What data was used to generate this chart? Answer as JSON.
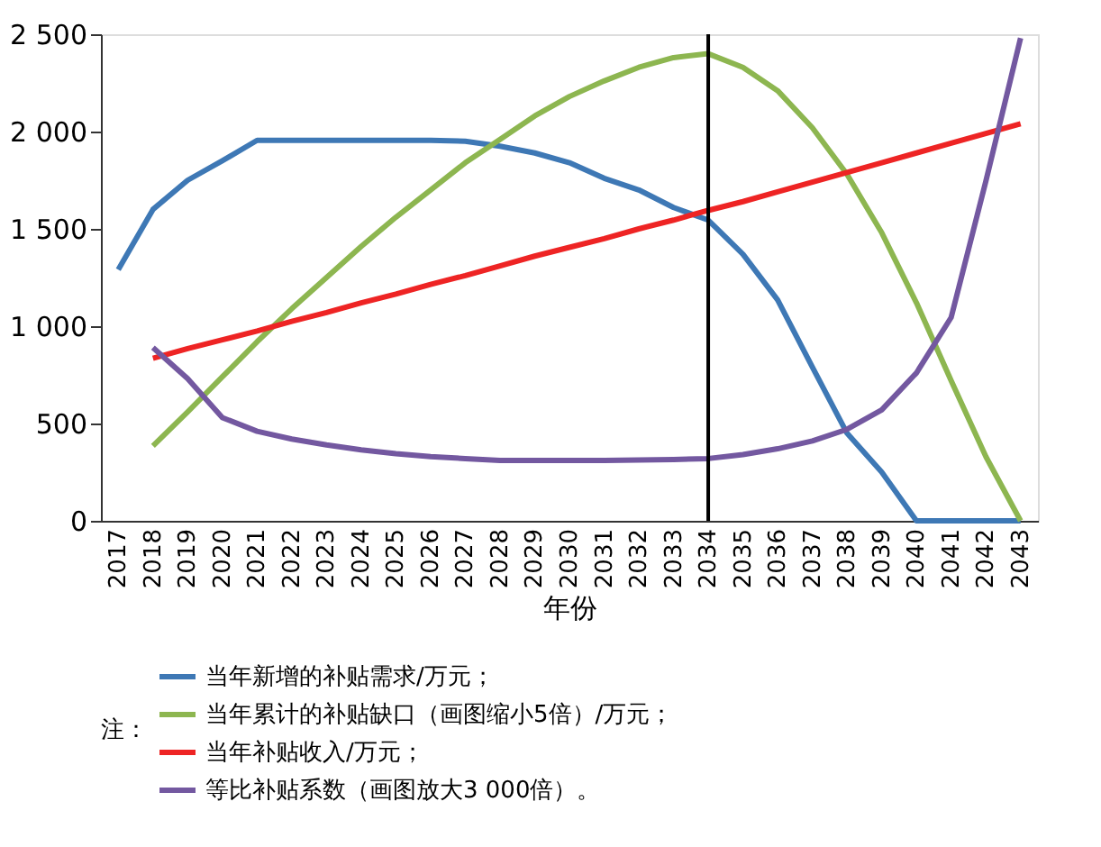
{
  "chart_data": {
    "type": "line",
    "xlabel": "年份",
    "legend_title": "注：",
    "categories": [
      "2017",
      "2018",
      "2019",
      "2020",
      "2021",
      "2022",
      "2023",
      "2024",
      "2025",
      "2026",
      "2027",
      "2028",
      "2029",
      "2030",
      "2031",
      "2032",
      "2033",
      "2034",
      "2035",
      "2036",
      "2037",
      "2038",
      "2039",
      "2040",
      "2041",
      "2042",
      "2043"
    ],
    "series": [
      {
        "name": "当年新增的补贴需求/万元；",
        "color": "#3e78b5",
        "values": [
          1290,
          1600,
          1750,
          1850,
          1955,
          1955,
          1955,
          1955,
          1955,
          1955,
          1950,
          1925,
          1890,
          1840,
          1760,
          1700,
          1610,
          1545,
          1370,
          1135,
          790,
          450,
          250,
          0,
          0,
          0,
          0
        ]
      },
      {
        "name": "当年累计的补贴缺口（画图缩小5倍）/万元；",
        "color": "#8db650",
        "values": [
          null,
          385,
          560,
          740,
          920,
          1090,
          1250,
          1410,
          1560,
          1700,
          1840,
          1960,
          2080,
          2180,
          2260,
          2330,
          2380,
          2400,
          2330,
          2210,
          2020,
          1780,
          1480,
          1120,
          720,
          330,
          0
        ]
      },
      {
        "name": "当年补贴收入/万元；",
        "color": "#ee2424",
        "values": [
          null,
          835,
          885,
          930,
          975,
          1025,
          1070,
          1120,
          1165,
          1215,
          1260,
          1310,
          1360,
          1405,
          1450,
          1500,
          1545,
          1595,
          1640,
          1690,
          1740,
          1790,
          1840,
          1890,
          1940,
          1990,
          2040
        ]
      },
      {
        "name": "等比补贴系数（画图放大3 000倍）。",
        "color": "#7358a0",
        "values": [
          null,
          890,
          730,
          530,
          460,
          420,
          390,
          365,
          345,
          330,
          320,
          310,
          310,
          310,
          310,
          312,
          315,
          320,
          340,
          370,
          410,
          470,
          570,
          760,
          1045,
          1745,
          2480
        ]
      }
    ],
    "ylim": [
      0,
      2500
    ],
    "yticks": [
      0,
      500,
      {
        "value": 1000,
        "label": "1 000"
      },
      {
        "value": 1500,
        "label": "1 500"
      },
      {
        "value": 2000,
        "label": "2 000"
      },
      {
        "value": 2500,
        "label": "2 500"
      }
    ],
    "ref_lines": [
      {
        "axis": "x",
        "value": "2034",
        "color": "#000000"
      }
    ],
    "grid": false,
    "legend": "bottom",
    "line_style": "solid"
  }
}
